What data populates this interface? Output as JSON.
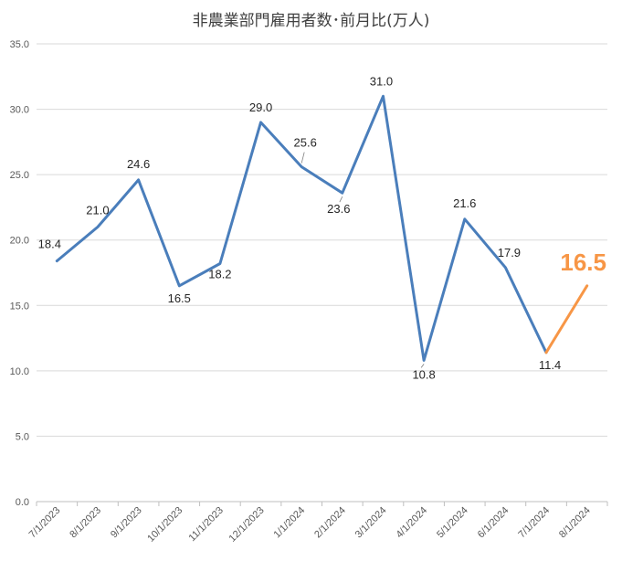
{
  "chart_data": {
    "type": "line",
    "title": "非農業部門雇用者数･前月比(万人)",
    "xlabel": "",
    "ylabel": "",
    "ylim": [
      0,
      35
    ],
    "yticks": [
      "0.0",
      "5.0",
      "10.0",
      "15.0",
      "20.0",
      "25.0",
      "30.0",
      "35.0"
    ],
    "grid": true,
    "categories": [
      "7/1/2023",
      "8/1/2023",
      "9/1/2023",
      "10/1/2023",
      "11/1/2023",
      "12/1/2023",
      "1/1/2024",
      "2/1/2024",
      "3/1/2024",
      "4/1/2024",
      "5/1/2024",
      "6/1/2024",
      "7/1/2024",
      "8/1/2024"
    ],
    "series": [
      {
        "values": [
          18.4,
          21.0,
          24.6,
          16.5,
          18.2,
          29.0,
          25.6,
          23.6,
          31.0,
          10.8,
          21.6,
          17.9,
          11.4,
          null
        ],
        "labels": [
          "18.4",
          "21.0",
          "24.6",
          "16.5",
          "18.2",
          "29.0",
          "25.6",
          "23.6",
          "31.0",
          "10.8",
          "21.6",
          "17.9",
          "11.4",
          ""
        ],
        "color": "#4a7ebb"
      },
      {
        "values": [
          null,
          null,
          null,
          null,
          null,
          null,
          null,
          null,
          null,
          null,
          null,
          null,
          11.4,
          16.5
        ],
        "labels": [
          "",
          "",
          "",
          "",
          "",
          "",
          "",
          "",
          "",
          "",
          "",
          "",
          "",
          "16.5"
        ],
        "color": "#f79646"
      }
    ],
    "gridline_color": "#d9d9d9",
    "axis_color": "#bfbfbf"
  }
}
